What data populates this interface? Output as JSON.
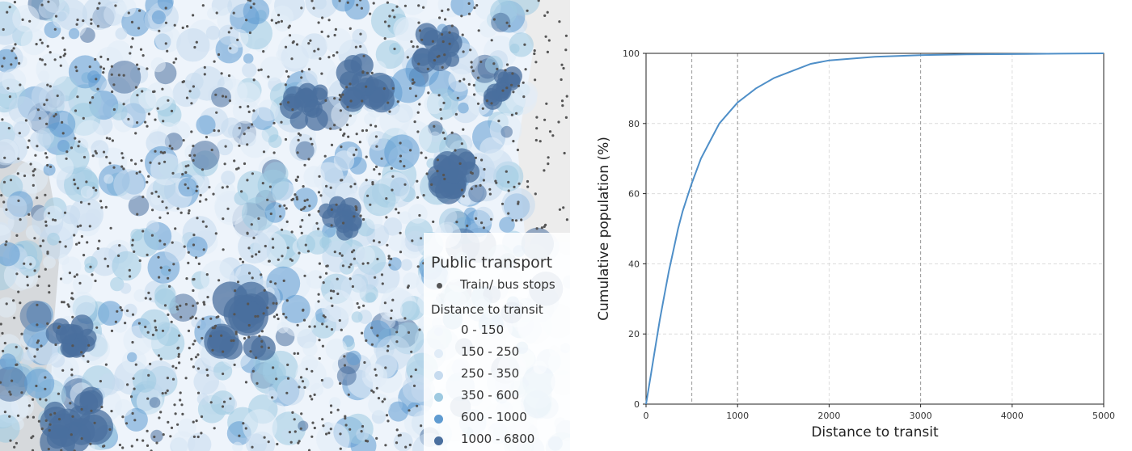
{
  "map": {
    "legend": {
      "title": "Public transport",
      "stops_label": "Train/ bus stops",
      "distance_title": "Distance to transit",
      "classes": [
        {
          "label": "0 - 150",
          "color": "#f4f8fd"
        },
        {
          "label": "150 - 250",
          "color": "#e1ecf7"
        },
        {
          "label": "250 - 350",
          "color": "#c6dbef"
        },
        {
          "label": "350 - 600",
          "color": "#9ecae1"
        },
        {
          "label": "600 - 1000",
          "color": "#5f9bd1"
        },
        {
          "label": "1000 - 6800",
          "color": "#4a6f9e"
        }
      ],
      "stop_color": "#555555"
    }
  },
  "chart_data": {
    "type": "line",
    "xlabel": "Distance to transit",
    "ylabel": "Cumulative population (%)",
    "xlim": [
      0,
      5000
    ],
    "ylim": [
      0,
      100
    ],
    "xticks": [
      0,
      1000,
      2000,
      3000,
      4000,
      5000
    ],
    "yticks": [
      0,
      20,
      40,
      60,
      80,
      100
    ],
    "grid": true,
    "highlight_vlines": [
      500,
      1000,
      3000
    ],
    "series": [
      {
        "color": "#4f8fc8",
        "x": [
          0,
          50,
          100,
          150,
          200,
          250,
          300,
          350,
          400,
          450,
          500,
          600,
          700,
          800,
          900,
          1000,
          1200,
          1400,
          1600,
          1800,
          2000,
          2500,
          3000,
          3500,
          4000,
          4500,
          5000
        ],
        "y": [
          0,
          8,
          16,
          24,
          31,
          38,
          44,
          50,
          55,
          59,
          63,
          70,
          75,
          80,
          83,
          86,
          90,
          93,
          95,
          97,
          98,
          99,
          99.5,
          99.7,
          99.8,
          99.9,
          100
        ]
      }
    ]
  }
}
